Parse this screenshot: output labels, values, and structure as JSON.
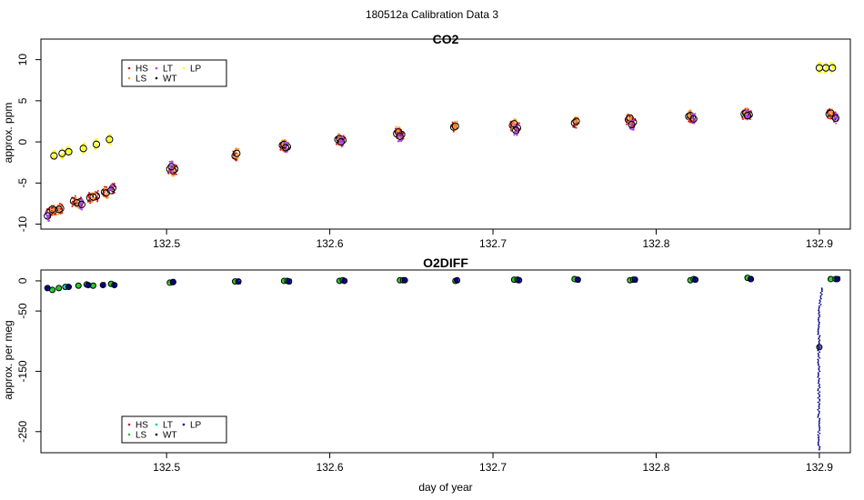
{
  "figure": {
    "title": "180512a   Calibration Data 3",
    "xlabel": "day of year"
  },
  "colors": {
    "HS": "#e41a1c",
    "LS": "#ff9a2e",
    "LT": "#a64cf0",
    "WT": "#000000",
    "LP": "#ffff00",
    "O2_WT": "#00008b",
    "O2_LT": "#00c8a0",
    "O2_LS": "#22cc22"
  },
  "chart_data": [
    {
      "type": "scatter",
      "title": "CO2",
      "ylabel": "approx. ppm",
      "xlabel": "",
      "xlim": [
        132.423,
        132.919
      ],
      "ylim": [
        -10.6,
        12.5
      ],
      "xticks": [
        "132.5",
        "132.6",
        "132.7",
        "132.8",
        "132.9"
      ],
      "yticks": [
        "-10",
        "-5",
        "0",
        "5",
        "10"
      ],
      "grid": false,
      "legend": {
        "position": "top-left",
        "entries": [
          "HS",
          "LS",
          "LT",
          "WT",
          "LP"
        ]
      },
      "series": [
        {
          "name": "LP",
          "x": [
            132.431,
            132.436,
            132.44,
            132.449,
            132.457,
            132.465,
            132.9,
            132.904,
            132.908
          ],
          "y": [
            -1.7,
            -1.4,
            -1.2,
            -0.8,
            -0.3,
            0.3,
            9.0,
            9.0,
            9.0
          ]
        },
        {
          "name": "HS",
          "x": [
            132.428,
            132.431,
            132.435,
            132.443,
            132.447,
            132.453,
            132.457,
            132.462,
            132.467,
            132.502,
            132.505,
            132.542,
            132.571,
            132.574,
            132.605,
            132.608,
            132.641,
            132.644,
            132.676,
            132.712,
            132.715,
            132.75,
            132.783,
            132.786,
            132.82,
            132.822,
            132.854,
            132.857,
            132.906,
            132.909
          ],
          "y": [
            -8.6,
            -8.3,
            -8.1,
            -7.2,
            -7.3,
            -6.8,
            -6.6,
            -6.1,
            -5.6,
            -3.3,
            -3.3,
            -1.7,
            -0.4,
            -0.6,
            0.3,
            0.2,
            1.0,
            0.9,
            1.8,
            2.0,
            1.7,
            2.3,
            2.7,
            2.4,
            3.1,
            3.0,
            3.4,
            3.3,
            3.4,
            3.1
          ]
        },
        {
          "name": "LS",
          "x": [
            132.43,
            132.434,
            132.445,
            132.455,
            132.463,
            132.504,
            132.543,
            132.572,
            132.606,
            132.642,
            132.677,
            132.713,
            132.751,
            132.784,
            132.821,
            132.855,
            132.907
          ],
          "y": [
            -8.2,
            -8.2,
            -7.4,
            -6.7,
            -6.2,
            -3.5,
            -1.4,
            -0.3,
            0.4,
            1.2,
            1.9,
            2.2,
            2.5,
            2.9,
            3.2,
            3.5,
            3.5
          ]
        },
        {
          "name": "LT",
          "x": [
            132.427,
            132.448,
            132.466,
            132.503,
            132.573,
            132.607,
            132.643,
            132.714,
            132.785,
            132.823,
            132.856,
            132.91
          ],
          "y": [
            -9.0,
            -7.6,
            -5.9,
            -3.0,
            -0.7,
            0.0,
            0.7,
            1.4,
            2.1,
            2.8,
            3.2,
            2.9
          ]
        }
      ]
    },
    {
      "type": "scatter",
      "title": "O2DIFF",
      "ylabel": "approx. per meg",
      "xlabel": "day of year",
      "xlim": [
        132.423,
        132.919
      ],
      "ylim": [
        -285,
        18
      ],
      "xticks": [
        "132.5",
        "132.6",
        "132.7",
        "132.8",
        "132.9"
      ],
      "yticks": [
        "0",
        "-50",
        "-150",
        "-250"
      ],
      "ytick_values": [
        0,
        -50,
        -150,
        -250
      ],
      "grid": false,
      "legend": {
        "position": "bottom-left",
        "entries": [
          "HS",
          "LS",
          "LT",
          "WT",
          "LP"
        ]
      },
      "series": [
        {
          "name": "LS",
          "x": [
            132.43,
            132.434,
            132.446,
            132.455,
            132.466,
            132.502,
            132.542,
            132.572,
            132.606,
            132.643,
            132.677,
            132.713,
            132.75,
            132.784,
            132.821,
            132.856,
            132.907
          ],
          "y": [
            -15,
            -12,
            -8,
            -8,
            -5,
            -3,
            -1,
            0,
            0,
            1,
            0,
            2,
            3,
            1,
            1,
            5,
            3
          ]
        },
        {
          "name": "LT",
          "x": [
            132.438,
            132.451,
            132.504,
            132.574,
            132.608,
            132.645,
            132.715,
            132.786,
            132.823,
            132.858,
            132.91
          ],
          "y": [
            -10,
            -6,
            -2,
            0,
            1,
            1,
            2,
            2,
            3,
            3,
            3
          ]
        },
        {
          "name": "WT",
          "x": [
            132.427,
            132.44,
            132.452,
            132.461,
            132.468,
            132.504,
            132.544,
            132.575,
            132.609,
            132.646,
            132.678,
            132.716,
            132.752,
            132.787,
            132.824,
            132.858,
            132.9,
            132.911
          ],
          "y": [
            -12,
            -10,
            -7,
            -7,
            -7,
            -2,
            -1,
            -1,
            0,
            1,
            1,
            1,
            2,
            2,
            2,
            3,
            -110,
            3
          ]
        }
      ]
    }
  ]
}
